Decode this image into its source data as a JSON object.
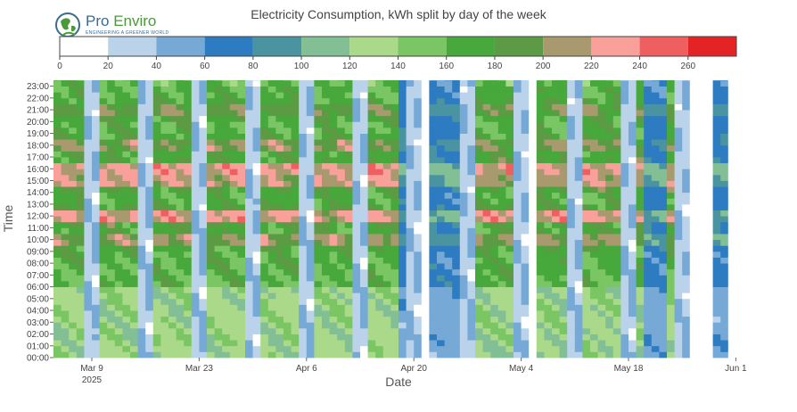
{
  "page": {
    "title": "Electricity Consumption, kWh split by day of the week"
  },
  "logo": {
    "name_part1": "Pro ",
    "name_part2": "Enviro",
    "tagline": "ENGINEERING A GREENER WORLD"
  },
  "colors": {
    "text": "#444444",
    "grid": "#e5e5e5"
  },
  "chart_data": {
    "type": "heatmap",
    "subtype": "contour",
    "title": "Electricity Consumption, kWh split by day of the week",
    "xlabel": "Date",
    "ylabel": "Time",
    "x_range": [
      "2025-03-04",
      "2025-06-02"
    ],
    "y_range": [
      0,
      23.5
    ],
    "x_ticks": [
      {
        "date": "2025-03-09",
        "label": "Mar 9",
        "sublabel": "2025"
      },
      {
        "date": "2025-03-23",
        "label": "Mar 23",
        "sublabel": ""
      },
      {
        "date": "2025-04-06",
        "label": "Apr 6",
        "sublabel": ""
      },
      {
        "date": "2025-04-20",
        "label": "Apr 20",
        "sublabel": ""
      },
      {
        "date": "2025-05-04",
        "label": "May 4",
        "sublabel": ""
      },
      {
        "date": "2025-05-18",
        "label": "May 18",
        "sublabel": ""
      },
      {
        "date": "2025-06-01",
        "label": "Jun 1",
        "sublabel": ""
      }
    ],
    "y_ticks": [
      "00:00",
      "01:00",
      "02:00",
      "03:00",
      "04:00",
      "05:00",
      "06:00",
      "07:00",
      "08:00",
      "09:00",
      "10:00",
      "11:00",
      "12:00",
      "13:00",
      "14:00",
      "15:00",
      "16:00",
      "17:00",
      "18:00",
      "19:00",
      "20:00",
      "21:00",
      "22:00",
      "23:00"
    ],
    "colorscale": {
      "orientation": "horizontal",
      "placement": "top",
      "tick_labels": [
        "0",
        "20",
        "40",
        "60",
        "80",
        "100",
        "120",
        "140",
        "160",
        "180",
        "200",
        "220",
        "240",
        "260"
      ],
      "bins": [
        {
          "from": 0,
          "to": 20,
          "color": "#ffffff"
        },
        {
          "from": 20,
          "to": 40,
          "color": "#bad3ea"
        },
        {
          "from": 40,
          "to": 60,
          "color": "#76a9d5"
        },
        {
          "from": 60,
          "to": 80,
          "color": "#2d7bc0"
        },
        {
          "from": 80,
          "to": 100,
          "color": "#4a94a2"
        },
        {
          "from": 100,
          "to": 120,
          "color": "#82bf95"
        },
        {
          "from": 120,
          "to": 140,
          "color": "#abd98a"
        },
        {
          "from": 140,
          "to": 160,
          "color": "#7bc664"
        },
        {
          "from": 160,
          "to": 180,
          "color": "#47a83b"
        },
        {
          "from": 180,
          "to": 200,
          "color": "#5d9a44"
        },
        {
          "from": 200,
          "to": 220,
          "color": "#a89a6e"
        },
        {
          "from": 220,
          "to": 240,
          "color": "#f9a09b"
        },
        {
          "from": 240,
          "to": 260,
          "color": "#f05f5f"
        },
        {
          "from": 260,
          "to": 280,
          "color": "#e42424"
        }
      ]
    },
    "weekday_profile": {
      "base_day": 165,
      "night": 130,
      "peaks": [
        {
          "hour": 10,
          "value": 210
        },
        {
          "hour": 12,
          "value": 235
        },
        {
          "hour": 15,
          "value": 225
        },
        {
          "hour": 16,
          "value": 235
        },
        {
          "hour": 18,
          "value": 205
        },
        {
          "hour": 21,
          "value": 200
        }
      ]
    },
    "weekend_value": 35,
    "outage_days": [
      "2025-04-21",
      "2025-05-05",
      "2025-05-26",
      "2025-05-27",
      "2025-05-28",
      "2025-05-31",
      "2025-06-01"
    ],
    "reduced_days": [
      "2025-04-18",
      "2025-04-22",
      "2025-04-23",
      "2025-04-24",
      "2025-04-25",
      "2025-05-20",
      "2025-05-21",
      "2025-05-22",
      "2025-05-29",
      "2025-05-30"
    ]
  }
}
